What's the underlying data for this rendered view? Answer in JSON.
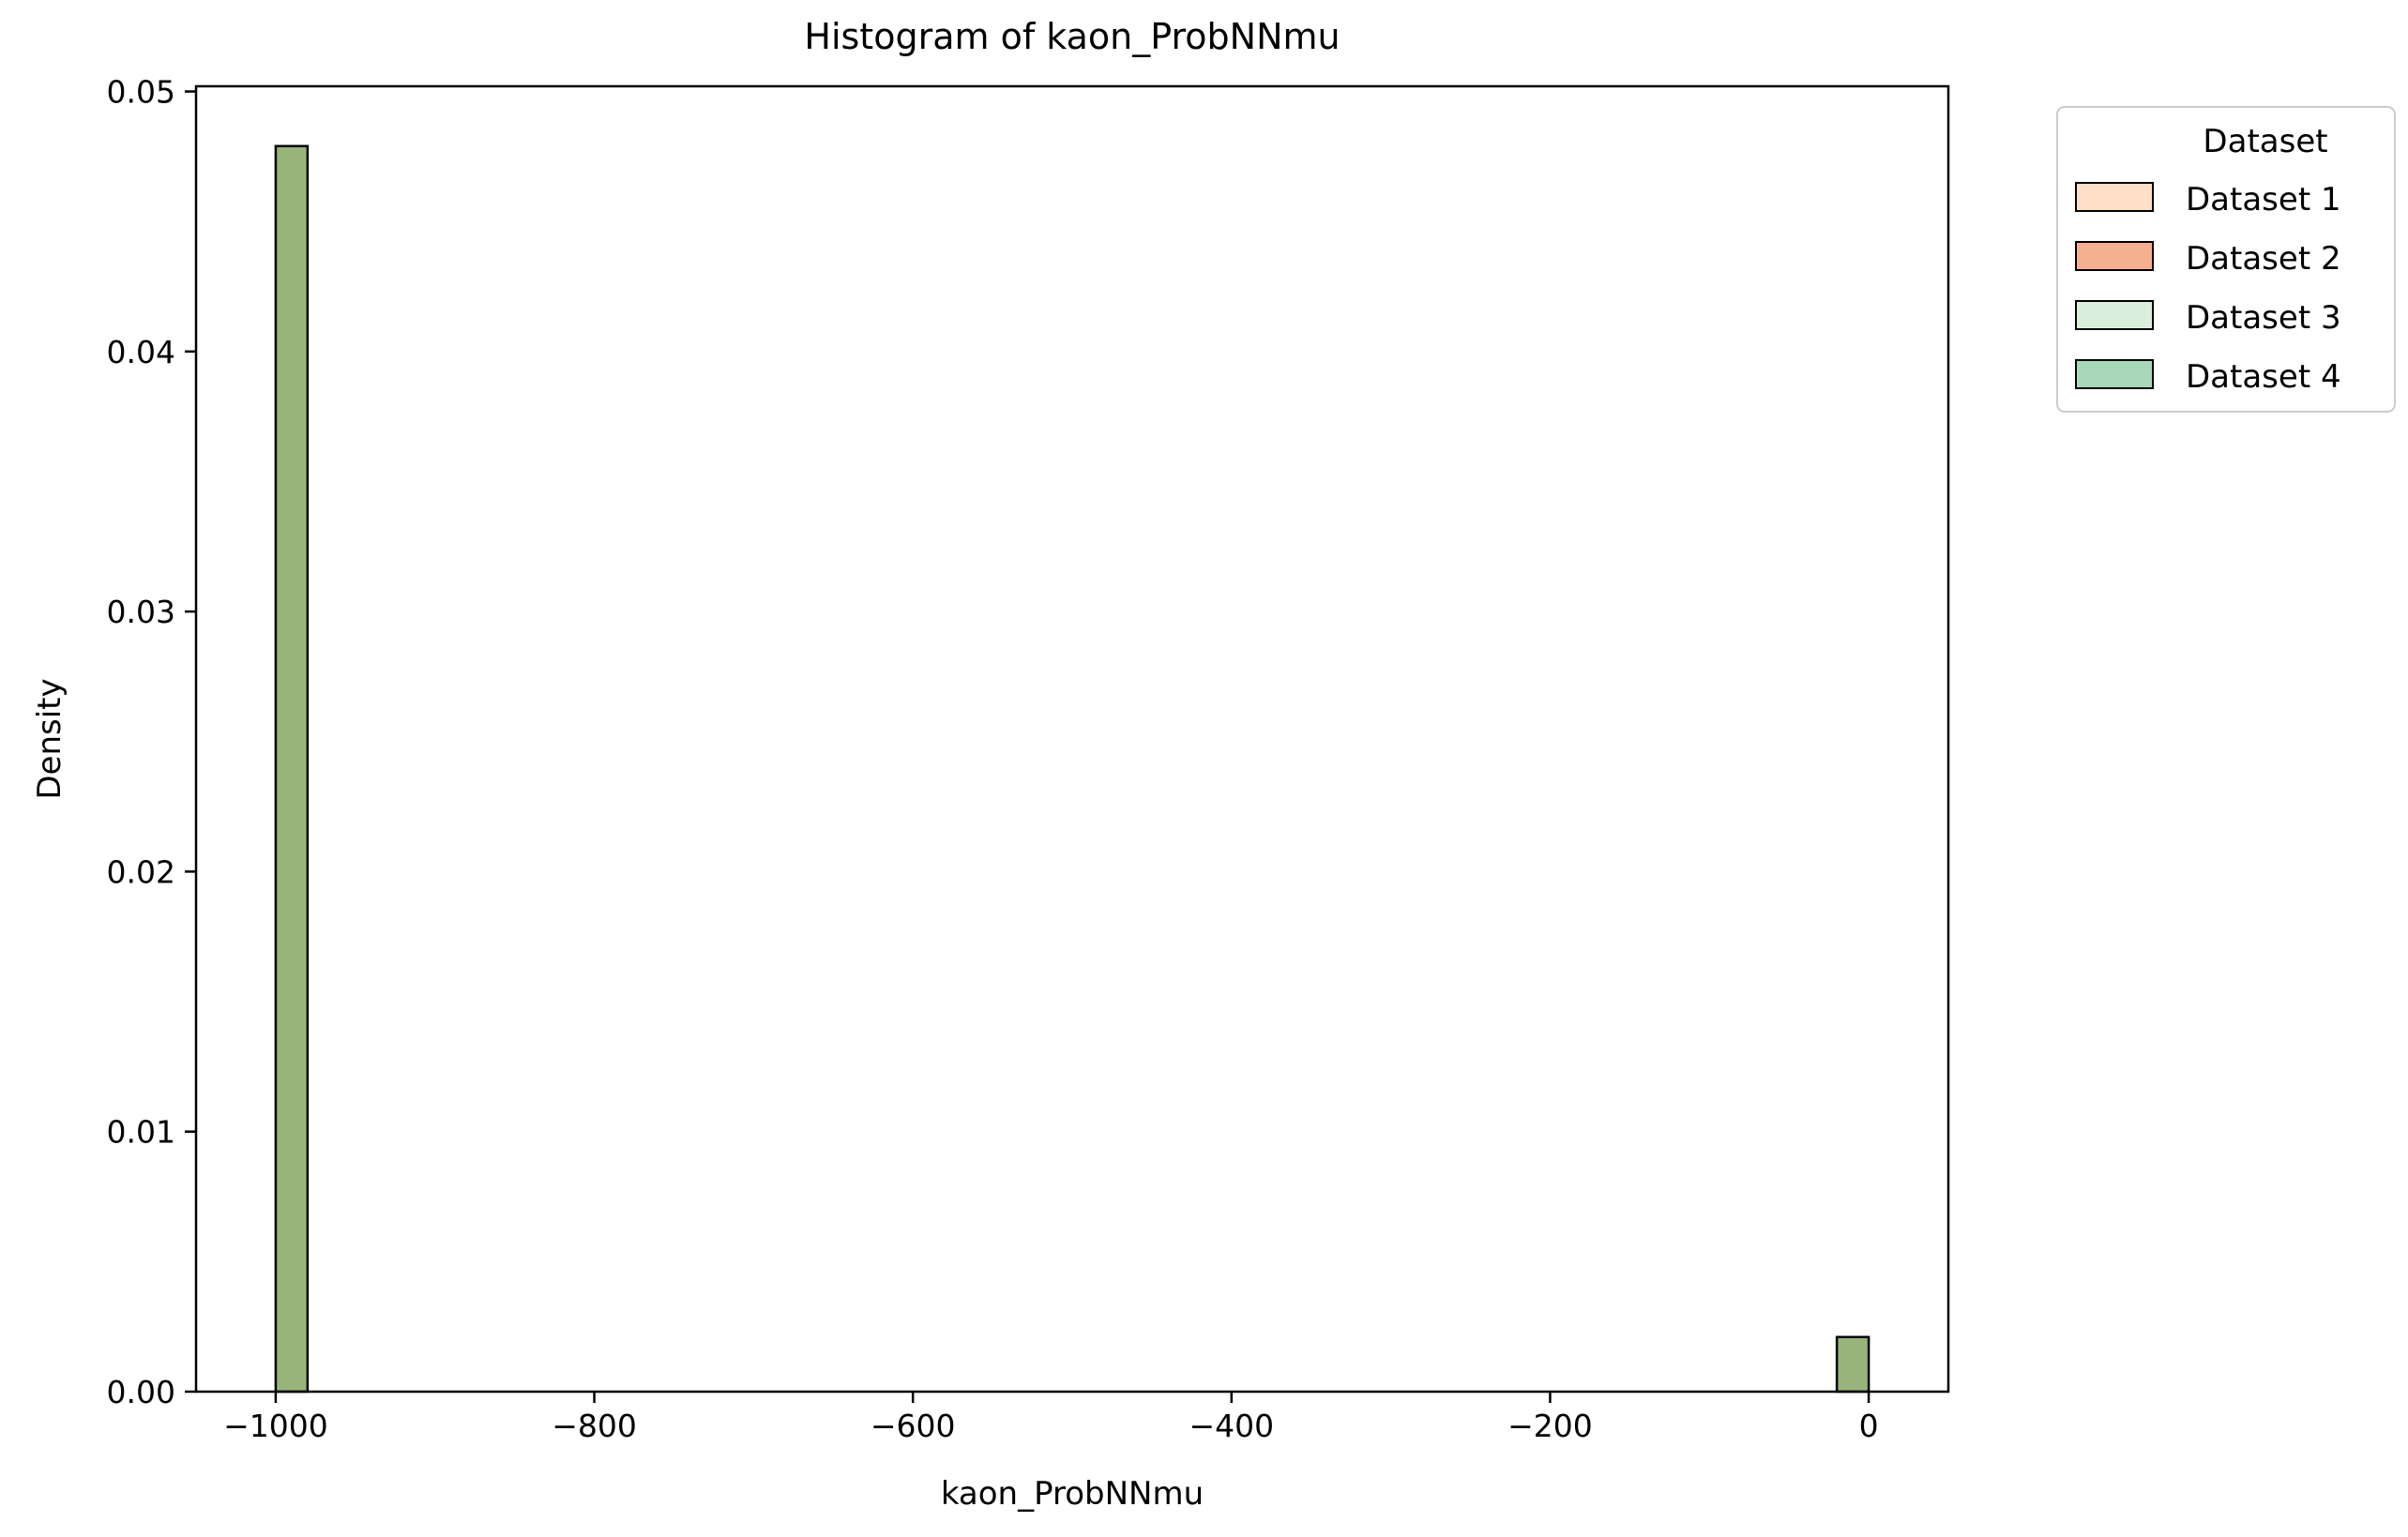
{
  "chart_data": {
    "type": "bar",
    "title": "Histogram of kaon_ProbNNmu",
    "xlabel": "kaon_ProbNNmu",
    "ylabel": "Density",
    "xlim": [
      -1050,
      50
    ],
    "ylim": [
      0,
      0.0502
    ],
    "xticks": [
      -1000,
      -800,
      -600,
      -400,
      -200,
      0
    ],
    "xtick_labels": [
      "−1000",
      "−800",
      "−600",
      "−400",
      "−200",
      "0"
    ],
    "yticks": [
      0.0,
      0.01,
      0.02,
      0.03,
      0.04,
      0.05
    ],
    "ytick_labels": [
      "0.00",
      "0.01",
      "0.02",
      "0.03",
      "0.04",
      "0.05"
    ],
    "grid": false,
    "legend": {
      "title": "Dataset",
      "placement": "outside top-right",
      "entries": [
        "Dataset 1",
        "Dataset 2",
        "Dataset 3",
        "Dataset 4"
      ],
      "colors": [
        "#fde0c5",
        "#f4b08f",
        "#dcefdc",
        "#a8d8b9"
      ]
    },
    "bars": [
      {
        "x_start": -1000,
        "x_end": -980,
        "density": 0.0479
      },
      {
        "x_start": -20,
        "x_end": 0,
        "density": 0.0021
      }
    ],
    "bar_color": "#98b47a",
    "edge_color": "#000000"
  }
}
